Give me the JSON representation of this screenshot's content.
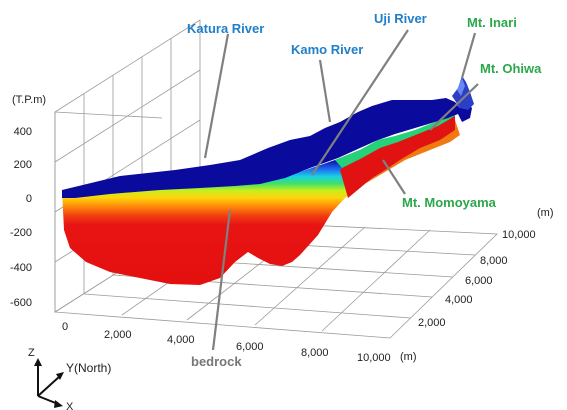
{
  "labels": {
    "rivers": {
      "katura": "Katura River",
      "kamo": "Kamo River",
      "uji": "Uji River"
    },
    "mountains": {
      "inari": "Mt. Inari",
      "ohiwa": "Mt. Ohiwa",
      "momoyama": "Mt. Momoyama"
    },
    "bedrock": "bedrock"
  },
  "axes": {
    "z_unit": "(T.P.m)",
    "z_ticks": [
      "400",
      "200",
      "0",
      "-200",
      "-400",
      "-600"
    ],
    "x_ticks": [
      "0",
      "2,000",
      "4,000",
      "6,000",
      "8,000",
      "10,000"
    ],
    "x_unit": "(m)",
    "y_ticks": [
      "2,000",
      "4,000",
      "6,000",
      "8,000",
      "10,000"
    ],
    "y_unit": "(m)"
  },
  "orientation": {
    "z": "Z",
    "y": "Y(North)",
    "x": "X"
  },
  "colors": {
    "river_label": "#1f7fc8",
    "mountain_label": "#2aa84a",
    "bedrock_label": "#777777",
    "surface": "#0a0a9c",
    "bedrock": "#e81414"
  }
}
